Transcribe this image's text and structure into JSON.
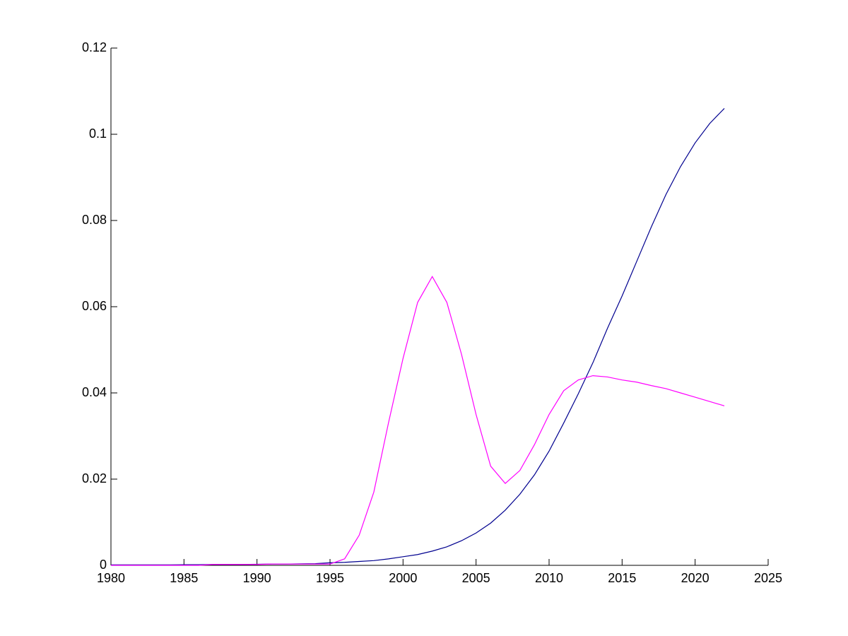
{
  "chart_data": {
    "type": "line",
    "x": [
      1980,
      1981,
      1982,
      1983,
      1984,
      1985,
      1986,
      1987,
      1988,
      1989,
      1990,
      1991,
      1992,
      1993,
      1994,
      1995,
      1996,
      1997,
      1998,
      1999,
      2000,
      2001,
      2002,
      2003,
      2004,
      2005,
      2006,
      2007,
      2008,
      2009,
      2010,
      2011,
      2012,
      2013,
      2014,
      2015,
      2016,
      2017,
      2018,
      2019,
      2020,
      2021,
      2022
    ],
    "series": [
      {
        "color": "#00008f",
        "values": [
          0.0001,
          0.0001,
          0.0001,
          0.0001,
          0.0001,
          0.00015,
          0.00015,
          0.0002,
          0.0002,
          0.0002,
          0.00025,
          0.0003,
          0.0003,
          0.00035,
          0.0004,
          0.0006,
          0.0007,
          0.0009,
          0.0011,
          0.0015,
          0.002,
          0.0025,
          0.0033,
          0.0043,
          0.0057,
          0.0075,
          0.0098,
          0.0128,
          0.0165,
          0.021,
          0.0265,
          0.033,
          0.0398,
          0.047,
          0.055,
          0.0625,
          0.0705,
          0.0785,
          0.086,
          0.0925,
          0.098,
          0.1025,
          0.106
        ]
      },
      {
        "color": "#ff00ff",
        "values": [
          0,
          0,
          0,
          0,
          0,
          0,
          0,
          0.0002,
          0.0002,
          0.0002,
          0.0002,
          0.0003,
          0.0003,
          0.0003,
          0.0003,
          0.0003,
          0.0015,
          0.007,
          0.017,
          0.033,
          0.048,
          0.061,
          0.067,
          0.061,
          0.049,
          0.035,
          0.023,
          0.019,
          0.022,
          0.028,
          0.035,
          0.0405,
          0.043,
          0.044,
          0.0437,
          0.043,
          0.0425,
          0.0417,
          0.041,
          0.04,
          0.039,
          0.038,
          0.037
        ]
      }
    ],
    "xlim": [
      1980,
      2025
    ],
    "xticks": [
      1980,
      1985,
      1990,
      1995,
      2000,
      2005,
      2010,
      2015,
      2020,
      2025
    ],
    "ylim": [
      0,
      0.12
    ],
    "yticks": [
      0,
      0.02,
      0.04,
      0.06,
      0.08,
      0.1,
      0.12
    ]
  }
}
